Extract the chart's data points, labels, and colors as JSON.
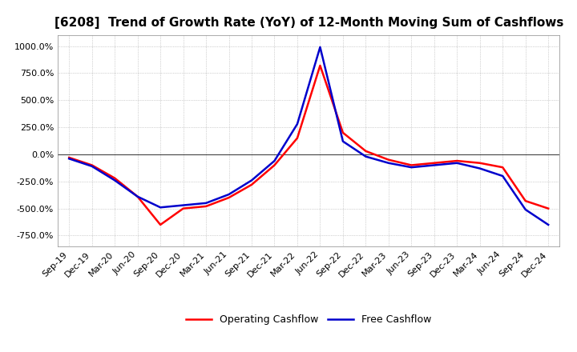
{
  "title": "[6208]  Trend of Growth Rate (YoY) of 12-Month Moving Sum of Cashflows",
  "title_fontsize": 11,
  "tick_fontsize": 8,
  "legend_fontsize": 9,
  "background_color": "#ffffff",
  "plot_bg_color": "#ffffff",
  "grid_color": "#aaaaaa",
  "operating_color": "#ff0000",
  "free_color": "#0000cc",
  "ylim": [
    -850,
    1100
  ],
  "yticks": [
    -750,
    -500,
    -250,
    0,
    250,
    500,
    750,
    1000
  ],
  "x_labels": [
    "Sep-19",
    "Dec-19",
    "Mar-20",
    "Jun-20",
    "Sep-20",
    "Dec-20",
    "Mar-21",
    "Jun-21",
    "Sep-21",
    "Dec-21",
    "Mar-22",
    "Jun-22",
    "Sep-22",
    "Dec-22",
    "Mar-23",
    "Jun-23",
    "Sep-23",
    "Dec-23",
    "Mar-24",
    "Jun-24",
    "Sep-24",
    "Dec-24"
  ],
  "operating_cashflow": [
    -30,
    -100,
    -220,
    -390,
    -650,
    -500,
    -480,
    -400,
    -280,
    -100,
    150,
    820,
    200,
    30,
    -50,
    -100,
    -80,
    -60,
    -80,
    -120,
    -430,
    -500
  ],
  "free_cashflow": [
    -40,
    -110,
    -240,
    -390,
    -490,
    -470,
    -450,
    -370,
    -240,
    -60,
    280,
    990,
    120,
    -20,
    -80,
    -120,
    -100,
    -80,
    -130,
    -200,
    -510,
    -650
  ]
}
